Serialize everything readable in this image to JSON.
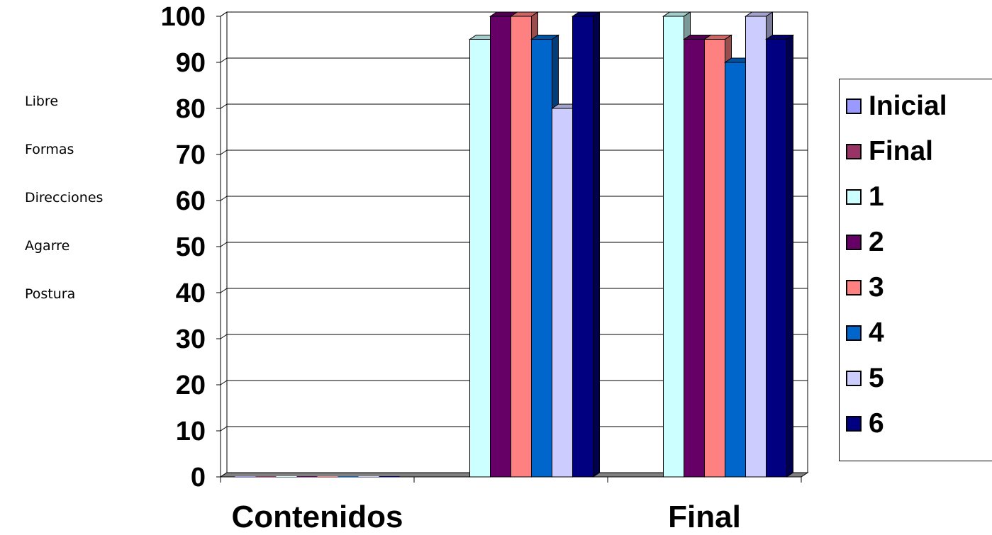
{
  "side_labels": [
    "Libre",
    "Formas",
    "Direcciones",
    "Agarre",
    "Postura"
  ],
  "chart_data": {
    "type": "bar",
    "title": "",
    "xlabel": "",
    "ylabel": "",
    "ylim": [
      0,
      100
    ],
    "yticks": [
      "0",
      "10",
      "20",
      "30",
      "40",
      "50",
      "60",
      "70",
      "80",
      "90",
      "100"
    ],
    "grid": true,
    "legend_placement": "right",
    "categories": [
      "Contenidos",
      "",
      "Final"
    ],
    "series": [
      {
        "name": "Inicial",
        "color": "#9999ff",
        "values": [
          0,
          null,
          null
        ]
      },
      {
        "name": "Final",
        "color": "#993366",
        "values": [
          0,
          null,
          null
        ]
      },
      {
        "name": "1",
        "color": "#ccffff",
        "values": [
          0,
          95,
          100
        ]
      },
      {
        "name": "2",
        "color": "#660066",
        "values": [
          0,
          100,
          95
        ]
      },
      {
        "name": "3",
        "color": "#ff8080",
        "values": [
          0,
          100,
          95
        ]
      },
      {
        "name": "4",
        "color": "#0066cc",
        "values": [
          0,
          95,
          90
        ]
      },
      {
        "name": "5",
        "color": "#ccccff",
        "values": [
          0,
          80,
          100
        ]
      },
      {
        "name": "6",
        "color": "#000080",
        "values": [
          0,
          100,
          95
        ]
      }
    ]
  }
}
